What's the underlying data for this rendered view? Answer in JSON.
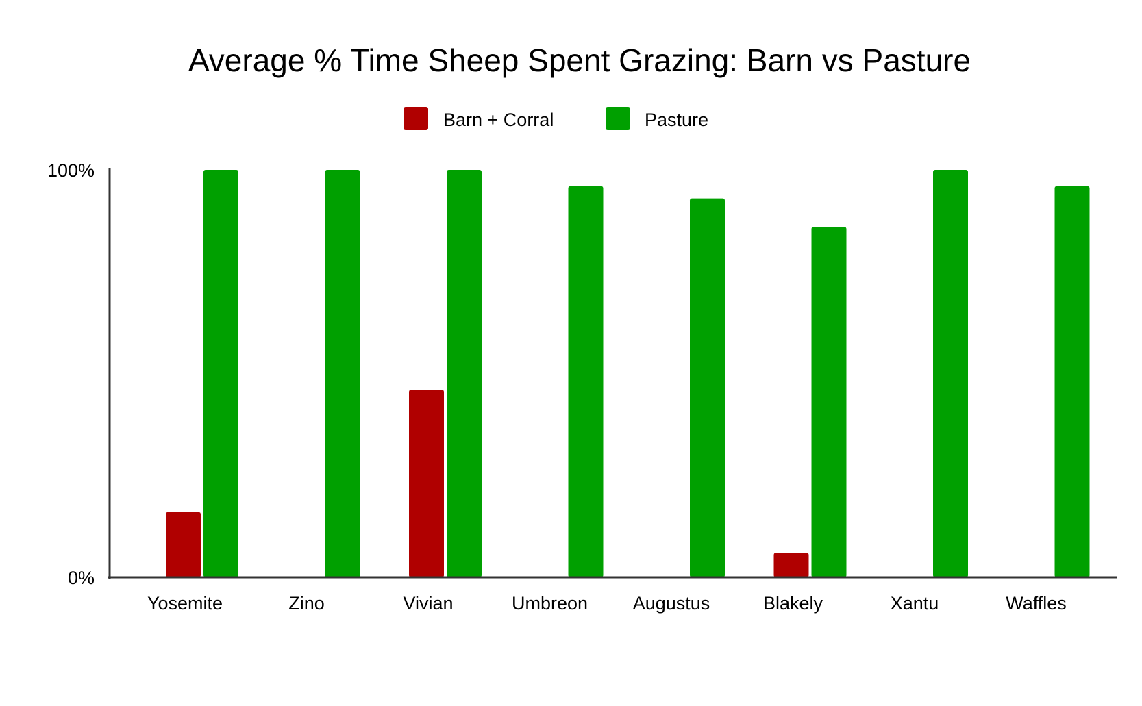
{
  "chart_data": {
    "type": "bar",
    "title": "Average % Time Sheep Spent Grazing: Barn vs Pasture",
    "xlabel": "",
    "ylabel": "",
    "ylim": [
      0,
      100
    ],
    "yticks": [
      {
        "value": 0,
        "label": "0%"
      },
      {
        "value": 100,
        "label": "100%"
      }
    ],
    "grid": false,
    "legend_position": "top-center",
    "categories": [
      "Yosemite",
      "Zino",
      "Vivian",
      "Umbreon",
      "Augustus",
      "Blakely",
      "Xantu",
      "Waffles"
    ],
    "series": [
      {
        "name": "Barn + Corral",
        "color": "#b00000",
        "values": [
          16,
          0,
          46,
          0,
          0,
          6,
          0,
          0
        ]
      },
      {
        "name": "Pasture",
        "color": "#00a000",
        "values": [
          100,
          100,
          100,
          96,
          93,
          86,
          100,
          96
        ]
      }
    ]
  }
}
